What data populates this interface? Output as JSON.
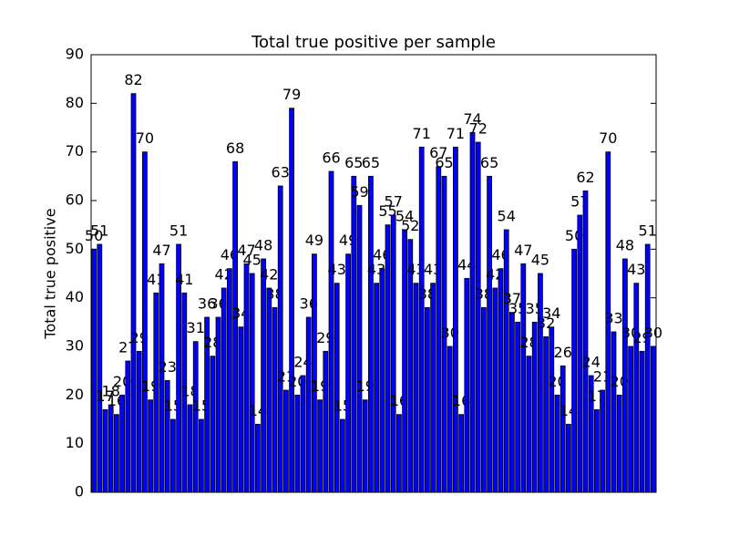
{
  "chart_data": {
    "type": "bar",
    "title": "Total true positive per sample",
    "ylabel": "Total true positive",
    "categories": [
      null,
      null,
      null,
      null,
      null,
      null,
      null,
      null,
      null,
      null,
      null,
      null,
      null,
      null,
      null,
      null,
      null,
      null,
      null,
      null,
      null,
      null,
      null,
      null,
      null,
      null,
      null,
      null,
      null,
      null,
      null,
      null,
      null,
      null,
      null,
      null,
      null,
      null,
      null,
      null,
      null,
      null,
      null,
      null,
      null,
      null,
      null,
      null,
      null,
      null,
      null,
      null,
      null,
      null,
      null,
      null,
      null,
      null,
      null,
      null,
      null,
      null,
      null,
      null,
      null,
      null,
      null,
      null,
      null,
      null,
      null,
      null,
      null,
      null,
      null,
      null,
      null,
      null,
      null,
      null,
      null,
      null,
      null,
      null,
      null,
      null,
      null,
      null,
      null,
      null,
      null,
      null,
      null,
      null,
      null,
      null,
      null,
      null,
      null,
      null
    ],
    "values": [
      50,
      51,
      17,
      18,
      16,
      20,
      27,
      82,
      29,
      70,
      19,
      41,
      47,
      23,
      15,
      51,
      41,
      18,
      31,
      15,
      36,
      28,
      36,
      42,
      46,
      68,
      34,
      47,
      45,
      14,
      48,
      42,
      38,
      63,
      21,
      79,
      20,
      24,
      36,
      49,
      19,
      29,
      66,
      43,
      15,
      49,
      65,
      59,
      19,
      65,
      43,
      46,
      55,
      57,
      16,
      54,
      52,
      43,
      71,
      38,
      43,
      67,
      65,
      30,
      71,
      16,
      44,
      74,
      72,
      38,
      65,
      42,
      46,
      54,
      37,
      35,
      47,
      28,
      35,
      45,
      32,
      34,
      20,
      26,
      14,
      50,
      57,
      62,
      24,
      17,
      21,
      70,
      33,
      20,
      48,
      30,
      43,
      29,
      51,
      30
    ],
    "color": "#0000ff",
    "ylim": [
      0,
      90
    ],
    "yticks": [
      0,
      10,
      20,
      30,
      40,
      50,
      60,
      70,
      80,
      90
    ],
    "grid": false
  }
}
